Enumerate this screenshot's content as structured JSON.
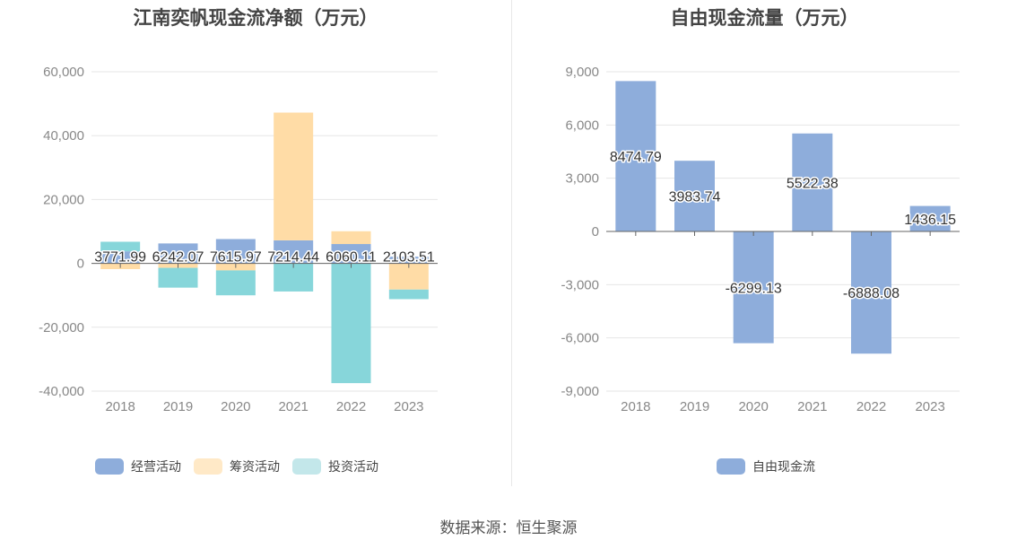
{
  "left_chart": {
    "title": "江南奕帆现金流净额（万元）",
    "legend": [
      {
        "name": "经营活动",
        "color": "#8eaddb"
      },
      {
        "name": "筹资活动",
        "color": "#ffdca6"
      },
      {
        "name": "投资活动",
        "color": "#c3e7ea"
      }
    ]
  },
  "right_chart": {
    "title": "自由现金流量（万元）",
    "legend": [
      {
        "name": "自由现金流",
        "color": "#8eaddb"
      }
    ]
  },
  "source": "数据来源：恒生聚源",
  "chart_data": [
    {
      "type": "bar",
      "stacked": true,
      "title": "江南奕帆现金流净额（万元）",
      "categories": [
        "2018",
        "2019",
        "2020",
        "2021",
        "2022",
        "2023"
      ],
      "ylim": [
        -40000,
        60000
      ],
      "yticks": [
        60000,
        40000,
        20000,
        0,
        -20000,
        -40000
      ],
      "ytick_labels": [
        "60,000",
        "40,000",
        "20,000",
        "0",
        "-20,000",
        "-40,000"
      ],
      "series": [
        {
          "name": "经营活动",
          "color": "#8eaddb",
          "values": [
            3771.99,
            6242.07,
            7615.97,
            7214.44,
            6060.11,
            2103.51
          ]
        },
        {
          "name": "筹资活动",
          "color": "#ffdca6",
          "values": [
            -1800,
            -1400,
            -2200,
            40000,
            4000,
            -8200
          ]
        },
        {
          "name": "投资活动",
          "color": "#87d6da",
          "values": [
            3000,
            -6200,
            -7800,
            -8800,
            -37500,
            -3000
          ]
        }
      ],
      "data_labels": [
        "3771.99",
        "6242.07",
        "7615.97",
        "7214.44",
        "6060.11",
        "2103.51"
      ],
      "grid": true,
      "legend_position": "bottom"
    },
    {
      "type": "bar",
      "title": "自由现金流量（万元）",
      "categories": [
        "2018",
        "2019",
        "2020",
        "2021",
        "2022",
        "2023"
      ],
      "ylim": [
        -9000,
        9000
      ],
      "yticks": [
        9000,
        6000,
        3000,
        0,
        -3000,
        -6000,
        -9000
      ],
      "ytick_labels": [
        "9,000",
        "6,000",
        "3,000",
        "0",
        "-3,000",
        "-6,000",
        "-9,000"
      ],
      "series": [
        {
          "name": "自由现金流",
          "color": "#8eaddb",
          "values": [
            8474.79,
            3983.74,
            -6299.13,
            5522.38,
            -6888.08,
            1436.15
          ]
        }
      ],
      "data_labels": [
        "8474.79",
        "3983.74",
        "-6299.13",
        "5522.38",
        "-6888.08",
        "1436.15"
      ],
      "grid": true,
      "legend_position": "bottom"
    }
  ]
}
